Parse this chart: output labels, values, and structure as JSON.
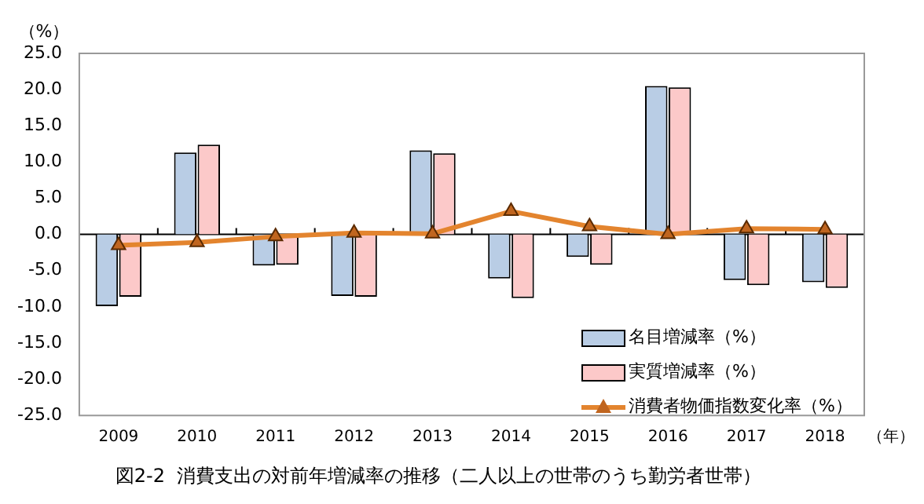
{
  "chart_data": {
    "type": "bar",
    "title": "図2-2  消費支出の対前年増減率の推移（二人以上の世帯のうち勤労者世帯）",
    "ylabel": "（%）",
    "xlabel": "（年）",
    "categories": [
      "2009",
      "2010",
      "2011",
      "2012",
      "2013",
      "2014",
      "2015",
      "2016",
      "2017",
      "2018"
    ],
    "series": [
      {
        "name": "名目増減率（%）",
        "color": "#b9cde5",
        "values": [
          -9.9,
          11.3,
          -4.3,
          -8.5,
          11.6,
          -6.1,
          -3.1,
          20.5,
          -6.3,
          -6.6
        ]
      },
      {
        "name": "実質増減率（%）",
        "color": "#fcc9c9",
        "values": [
          -8.6,
          12.4,
          -4.2,
          -8.6,
          11.2,
          -8.8,
          -4.2,
          20.3,
          -7.0,
          -7.4
        ]
      },
      {
        "name": "消費者物価指数変化率（%）",
        "type": "line",
        "color": "#e3842e",
        "marker": "triangle",
        "values": [
          -1.5,
          -1.1,
          -0.3,
          0.2,
          0.1,
          3.2,
          1.1,
          0.0,
          0.8,
          0.7
        ]
      }
    ],
    "ylim": [
      -25,
      25
    ],
    "yticks": [
      {
        "value": -25,
        "label": "-25.0"
      },
      {
        "value": -20,
        "label": "-20.0"
      },
      {
        "value": -15,
        "label": "-15.0"
      },
      {
        "value": -10,
        "label": "-10.0"
      },
      {
        "value": -5,
        "label": "-5.0"
      },
      {
        "value": 0,
        "label": "0.0"
      },
      {
        "value": 5,
        "label": "5.0"
      },
      {
        "value": 10,
        "label": "10.0"
      },
      {
        "value": 15,
        "label": "15.0"
      },
      {
        "value": 20,
        "label": "20.0"
      },
      {
        "value": 25,
        "label": "25.0"
      }
    ],
    "legend": "bottom right"
  }
}
